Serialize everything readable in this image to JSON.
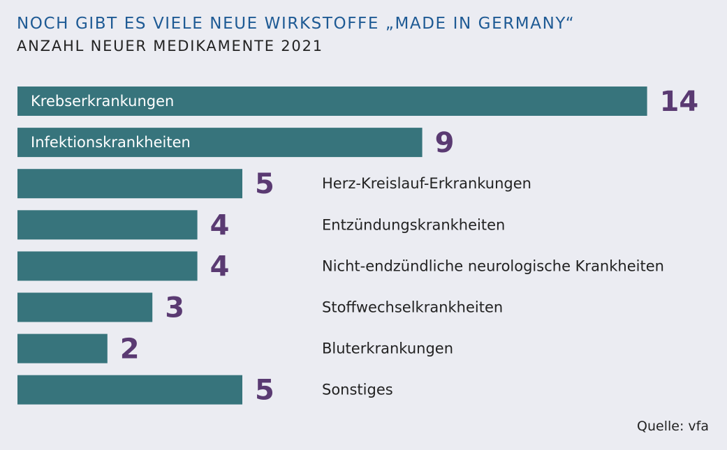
{
  "header": {
    "title": "NOCH GIBT ES VIELE NEUE WIRKSTOFFE „MADE IN GERMANY“",
    "subtitle": "ANZAHL NEUER MEDIKAMENTE 2021"
  },
  "footer": {
    "source": "Quelle: vfa"
  },
  "colors": {
    "bar": "#37747c",
    "value": "#5a3a72",
    "label_inside": "#ffffff",
    "label_outside": "#222222"
  },
  "chart_data": {
    "type": "bar",
    "orientation": "horizontal",
    "categories": [
      "Krebserkrankungen",
      "Infektionskrankheiten",
      "Herz-Kreislauf-Erkrankungen",
      "Entzündungskrankheiten",
      "Nicht-endzündliche neurologische Krankheiten",
      "Stoffwechselkrankheiten",
      "Bluterkrankungen",
      "Sonstiges"
    ],
    "values": [
      14,
      9,
      5,
      4,
      4,
      3,
      2,
      5
    ],
    "grid": false,
    "legend": "none"
  }
}
